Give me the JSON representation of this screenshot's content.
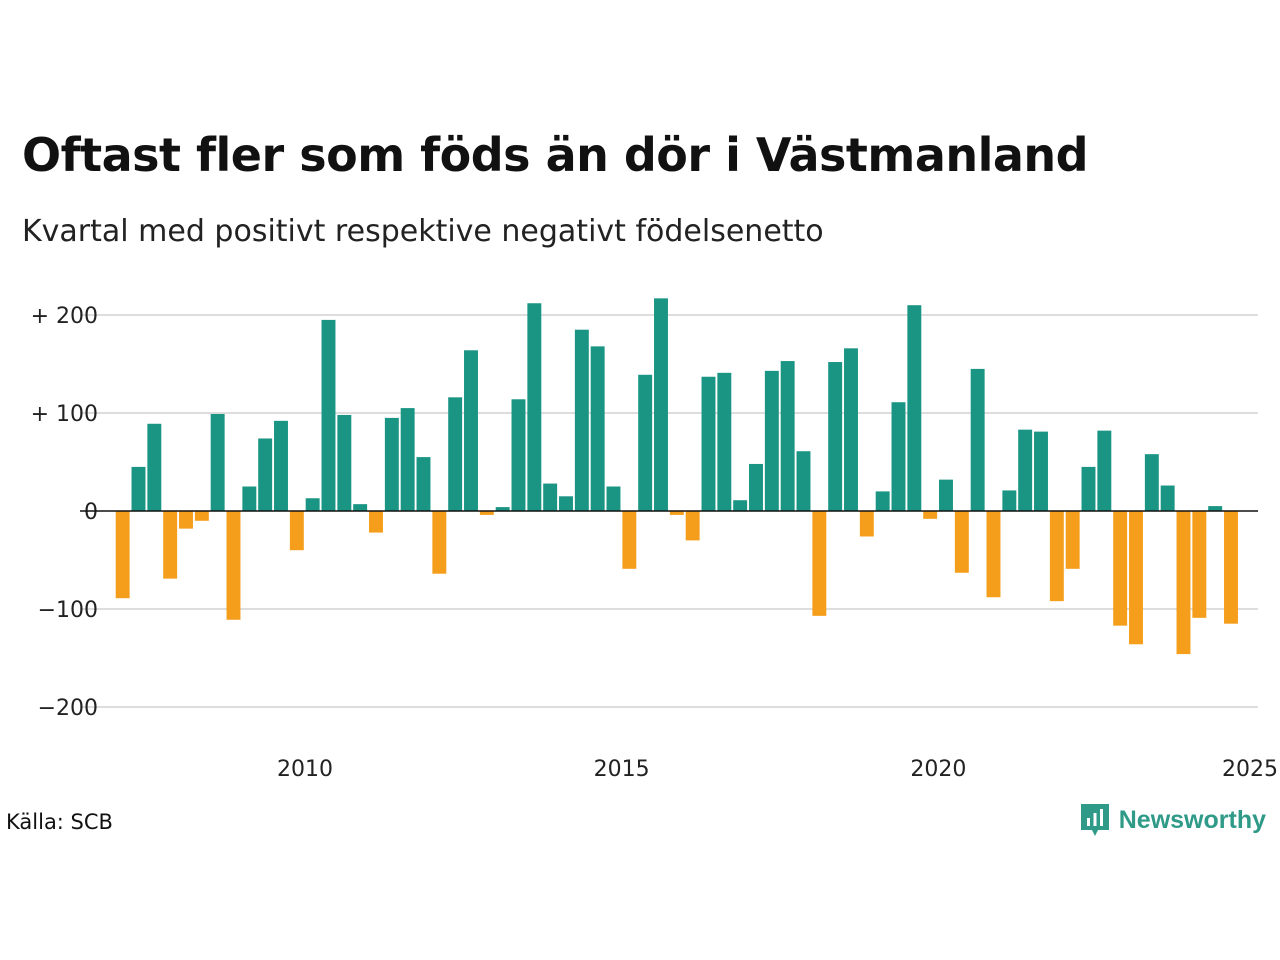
{
  "title": "Oftast fler som föds än dör i Västmanland",
  "subtitle": "Kvartal med positivt respektive negativt födelsenetto",
  "source": "Källa: SCB",
  "brand": {
    "name": "Newsworthy",
    "icon": "newsworthy-logo-icon"
  },
  "colors": {
    "positive": "#1a9584",
    "negative": "#f59e1c",
    "grid": "#dddddd",
    "zero_line": "#111111"
  },
  "chart_data": {
    "type": "bar",
    "x_start": 2007,
    "x_step": 0.25,
    "xlim": [
      2007,
      2025
    ],
    "ylim": [
      -230,
      220
    ],
    "x_ticks": [
      2010,
      2015,
      2020,
      2025
    ],
    "x_tick_labels": [
      "2010",
      "2015",
      "2020",
      "2025"
    ],
    "y_ticks": [
      200,
      100,
      0,
      -100,
      -200
    ],
    "y_tick_labels": [
      "+ 200",
      "+ 100",
      "0",
      "−100",
      "−200"
    ],
    "grid": true,
    "values": [
      -89,
      45,
      89,
      -69,
      -18,
      -10,
      99,
      -111,
      25,
      74,
      92,
      -40,
      13,
      195,
      98,
      7,
      -22,
      95,
      105,
      55,
      -64,
      116,
      164,
      -4,
      4,
      114,
      212,
      28,
      15,
      185,
      168,
      25,
      -59,
      139,
      217,
      -4,
      -30,
      137,
      141,
      11,
      48,
      143,
      153,
      61,
      -107,
      152,
      166,
      -26,
      20,
      111,
      210,
      -8,
      32,
      -63,
      145,
      -88,
      21,
      83,
      81,
      -92,
      -59,
      45,
      82,
      -117,
      -136,
      58,
      26,
      -146,
      -109,
      5,
      -115
    ]
  }
}
